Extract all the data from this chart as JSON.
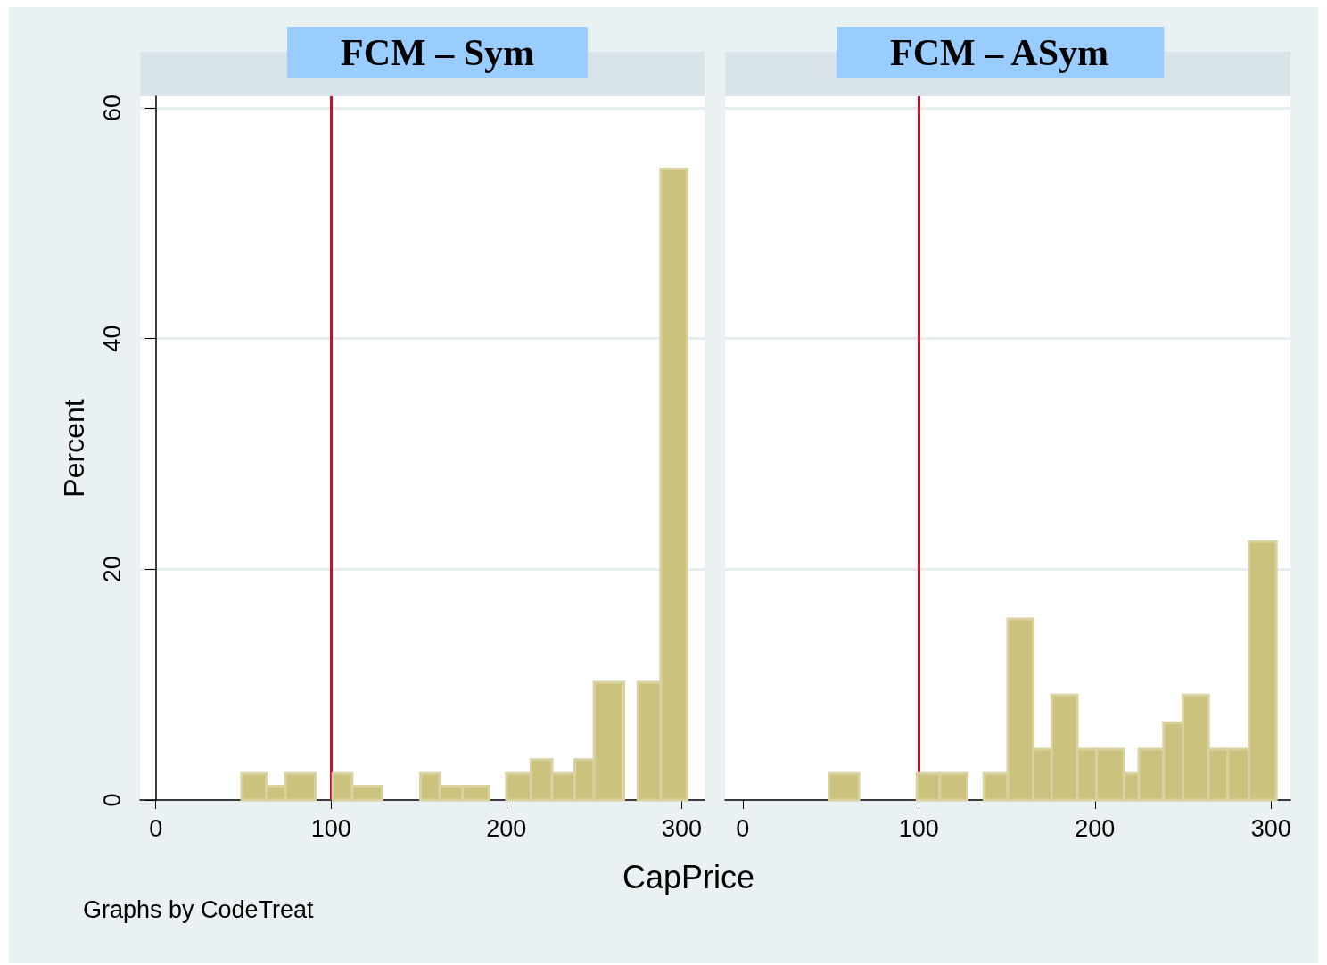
{
  "chart_data": [
    {
      "type": "histogram",
      "title": "FCM – Sym",
      "ylabel": "Percent",
      "annotations": [
        "Graphs by CodeTreat"
      ],
      "bins": [
        49,
        63,
        74,
        91,
        101,
        112,
        129,
        151,
        162,
        175,
        190,
        200,
        214,
        226,
        239,
        250,
        267,
        275,
        288,
        303
      ],
      "values": [
        2.3,
        1.2,
        2.3,
        0,
        2.3,
        1.2,
        0,
        2.3,
        1.2,
        1.2,
        0,
        2.3,
        3.5,
        2.3,
        3.5,
        10.2,
        0,
        10.2,
        54.7
      ],
      "color": "#cbc27d",
      "xlim": [
        -9,
        313
      ],
      "xticks": [
        0,
        100,
        200,
        300
      ],
      "ylim": [
        0,
        61
      ],
      "yticks": [
        0,
        20,
        40,
        60
      ],
      "grid": "y",
      "ref_lines": [
        {
          "axis": "x",
          "value": 100,
          "color": "#c8102e"
        }
      ]
    },
    {
      "type": "histogram",
      "title": "FCM – ASym",
      "xlabel": "CapPrice",
      "bins": [
        49,
        66,
        99,
        112,
        127.5,
        137,
        150.5,
        165,
        175.5,
        190,
        201,
        216.5,
        225,
        239,
        250,
        264.5,
        275.5,
        287.5,
        303
      ],
      "values": [
        2.3,
        0,
        2.3,
        2.3,
        0,
        2.3,
        15.7,
        4.4,
        9.1,
        4.4,
        4.4,
        2.3,
        4.4,
        6.7,
        9.1,
        4.4,
        4.4,
        22.4
      ],
      "color": "#cbc27d",
      "xlim": [
        -10,
        311
      ],
      "xticks": [
        0,
        100,
        200,
        300
      ],
      "ylim": [
        0,
        61
      ],
      "yticks": [
        0,
        20,
        40,
        60
      ],
      "grid": "y",
      "tick_labels": "x",
      "ref_lines": [
        {
          "axis": "x",
          "value": 100,
          "color": "#c8102e"
        }
      ]
    }
  ]
}
